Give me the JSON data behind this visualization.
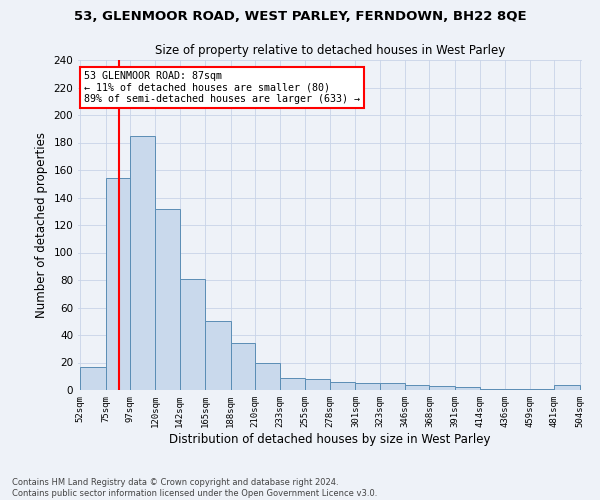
{
  "title1": "53, GLENMOOR ROAD, WEST PARLEY, FERNDOWN, BH22 8QE",
  "title2": "Size of property relative to detached houses in West Parley",
  "xlabel": "Distribution of detached houses by size in West Parley",
  "ylabel": "Number of detached properties",
  "bar_edges": [
    52,
    75,
    97,
    120,
    142,
    165,
    188,
    210,
    233,
    255,
    278,
    301,
    323,
    346,
    368,
    391,
    414,
    436,
    459,
    481,
    504
  ],
  "bar_heights": [
    17,
    154,
    185,
    132,
    81,
    50,
    34,
    20,
    9,
    8,
    6,
    5,
    5,
    4,
    3,
    2,
    1,
    1,
    1,
    4
  ],
  "bar_color": "#c9d9ec",
  "bar_edge_color": "#5a8db5",
  "property_line_x": 87,
  "property_line_color": "red",
  "annotation_text": "53 GLENMOOR ROAD: 87sqm\n← 11% of detached houses are smaller (80)\n89% of semi-detached houses are larger (633) →",
  "annotation_box_color": "white",
  "annotation_box_edge_color": "red",
  "ylim": [
    0,
    240
  ],
  "yticks": [
    0,
    20,
    40,
    60,
    80,
    100,
    120,
    140,
    160,
    180,
    200,
    220,
    240
  ],
  "footer_text": "Contains HM Land Registry data © Crown copyright and database right 2024.\nContains public sector information licensed under the Open Government Licence v3.0.",
  "grid_color": "#c8d4e8",
  "background_color": "#eef2f8"
}
